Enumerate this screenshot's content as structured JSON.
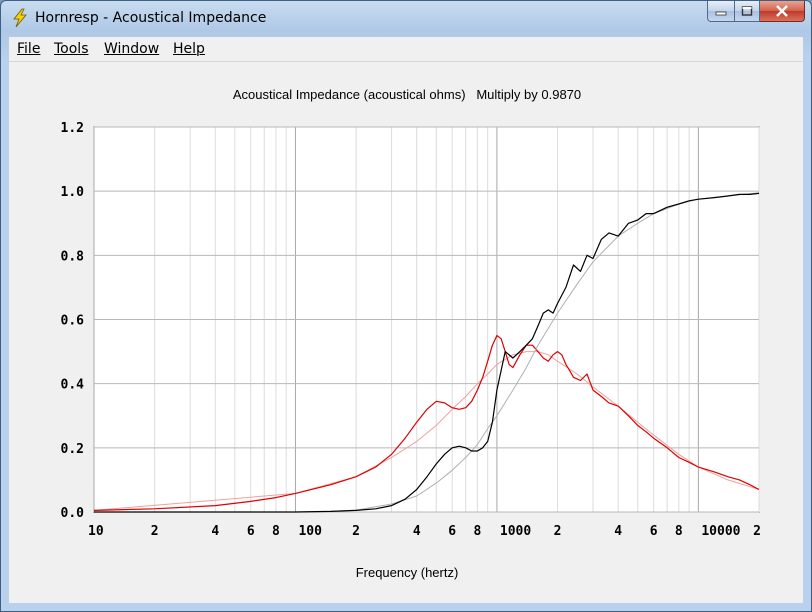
{
  "window": {
    "title": "Hornresp - Acoustical Impedance",
    "buttons": [
      "minimize",
      "maximize",
      "close"
    ]
  },
  "menu": {
    "items": [
      {
        "label": "File"
      },
      {
        "label": "Tools"
      },
      {
        "label": "Window"
      },
      {
        "label": "Help"
      }
    ]
  },
  "chart_data": {
    "type": "line",
    "title": "Acoustical Impedance (acoustical ohms)   Multiply by 0.9870",
    "xlabel": "Frequency (hertz)",
    "ylabel": "",
    "xscale": "log",
    "xlim": [
      10,
      20000
    ],
    "ylim": [
      0,
      1.2
    ],
    "grid": true,
    "x_tick_labels": [
      {
        "value": 10,
        "label": "10"
      },
      {
        "value": 20,
        "label": "2"
      },
      {
        "value": 40,
        "label": "4"
      },
      {
        "value": 60,
        "label": "6"
      },
      {
        "value": 80,
        "label": "8"
      },
      {
        "value": 100,
        "label": "100"
      },
      {
        "value": 200,
        "label": "2"
      },
      {
        "value": 400,
        "label": "4"
      },
      {
        "value": 600,
        "label": "6"
      },
      {
        "value": 800,
        "label": "8"
      },
      {
        "value": 1000,
        "label": "1000"
      },
      {
        "value": 2000,
        "label": "2"
      },
      {
        "value": 4000,
        "label": "4"
      },
      {
        "value": 6000,
        "label": "6"
      },
      {
        "value": 8000,
        "label": "8"
      },
      {
        "value": 10000,
        "label": "10000"
      },
      {
        "value": 20000,
        "label": "2"
      }
    ],
    "y_tick_labels": [
      "0.0",
      "0.2",
      "0.4",
      "0.6",
      "0.8",
      "1.0",
      "1.2"
    ],
    "y_ticks": [
      0,
      0.2,
      0.4,
      0.6,
      0.8,
      1.0,
      1.2
    ],
    "series": [
      {
        "color": "#000000",
        "width": 1.2,
        "x": [
          10,
          50,
          100,
          150,
          200,
          250,
          300,
          350,
          400,
          450,
          500,
          550,
          600,
          650,
          700,
          750,
          800,
          850,
          900,
          950,
          1000,
          1100,
          1200,
          1300,
          1400,
          1500,
          1600,
          1700,
          1800,
          1900,
          2000,
          2200,
          2400,
          2600,
          2800,
          3000,
          3300,
          3600,
          4000,
          4500,
          5000,
          5500,
          6000,
          7000,
          8000,
          9000,
          10000,
          12000,
          14000,
          16000,
          18000,
          20000
        ],
        "y": [
          0,
          0,
          0,
          0.002,
          0.005,
          0.01,
          0.02,
          0.04,
          0.07,
          0.11,
          0.15,
          0.18,
          0.2,
          0.205,
          0.2,
          0.19,
          0.19,
          0.2,
          0.22,
          0.28,
          0.38,
          0.5,
          0.48,
          0.5,
          0.52,
          0.54,
          0.58,
          0.62,
          0.63,
          0.62,
          0.65,
          0.7,
          0.77,
          0.75,
          0.8,
          0.79,
          0.85,
          0.87,
          0.86,
          0.9,
          0.91,
          0.93,
          0.93,
          0.95,
          0.96,
          0.97,
          0.975,
          0.98,
          0.985,
          0.99,
          0.99,
          0.993
        ]
      },
      {
        "color": "#b0b0b0",
        "width": 1,
        "x": [
          10,
          100,
          150,
          200,
          300,
          400,
          500,
          600,
          700,
          800,
          900,
          1000,
          1200,
          1400,
          1600,
          2000,
          2500,
          3000,
          4000,
          5000,
          6000,
          8000,
          10000,
          14000,
          20000
        ],
        "y": [
          0,
          0,
          0.002,
          0.006,
          0.025,
          0.05,
          0.09,
          0.13,
          0.17,
          0.21,
          0.26,
          0.3,
          0.38,
          0.45,
          0.52,
          0.62,
          0.71,
          0.78,
          0.86,
          0.9,
          0.93,
          0.96,
          0.975,
          0.985,
          0.995
        ]
      },
      {
        "color": "#dd0000",
        "width": 1.2,
        "x": [
          10,
          20,
          40,
          60,
          80,
          100,
          150,
          200,
          250,
          300,
          350,
          400,
          450,
          500,
          550,
          600,
          650,
          700,
          750,
          800,
          850,
          900,
          950,
          1000,
          1050,
          1100,
          1150,
          1200,
          1300,
          1400,
          1500,
          1600,
          1700,
          1800,
          1900,
          2000,
          2100,
          2200,
          2300,
          2400,
          2600,
          2800,
          3000,
          3300,
          3600,
          4000,
          4500,
          5000,
          5500,
          6000,
          7000,
          8000,
          9000,
          10000,
          12000,
          14000,
          16000,
          18000,
          20000
        ],
        "y": [
          0.005,
          0.01,
          0.02,
          0.033,
          0.045,
          0.058,
          0.085,
          0.11,
          0.14,
          0.18,
          0.23,
          0.28,
          0.32,
          0.345,
          0.34,
          0.325,
          0.32,
          0.325,
          0.345,
          0.38,
          0.42,
          0.47,
          0.52,
          0.55,
          0.54,
          0.5,
          0.46,
          0.45,
          0.49,
          0.52,
          0.52,
          0.5,
          0.48,
          0.47,
          0.49,
          0.5,
          0.49,
          0.46,
          0.44,
          0.42,
          0.41,
          0.43,
          0.38,
          0.36,
          0.34,
          0.33,
          0.3,
          0.27,
          0.25,
          0.23,
          0.2,
          0.17,
          0.155,
          0.14,
          0.125,
          0.11,
          0.1,
          0.085,
          0.07
        ]
      },
      {
        "color": "#f0a0a0",
        "width": 1,
        "x": [
          10,
          100,
          200,
          300,
          400,
          500,
          600,
          700,
          800,
          900,
          1000,
          1200,
          1400,
          1600,
          1800,
          2000,
          2500,
          3000,
          4000,
          5000,
          6000,
          8000,
          10000,
          14000,
          20000
        ],
        "y": [
          0.005,
          0.058,
          0.11,
          0.17,
          0.22,
          0.27,
          0.32,
          0.36,
          0.4,
          0.43,
          0.46,
          0.49,
          0.5,
          0.5,
          0.49,
          0.47,
          0.43,
          0.39,
          0.33,
          0.28,
          0.24,
          0.18,
          0.14,
          0.1,
          0.07
        ]
      }
    ]
  }
}
